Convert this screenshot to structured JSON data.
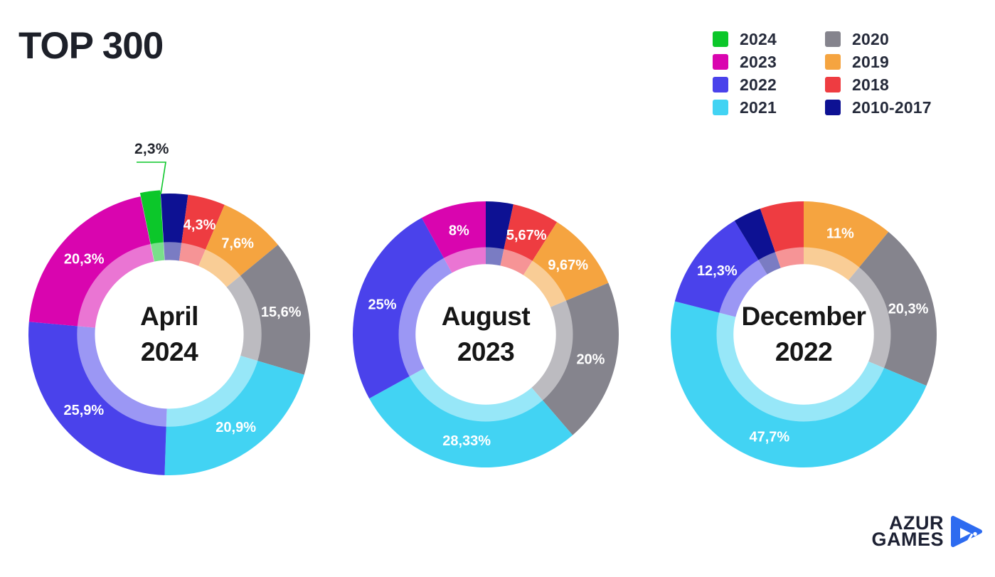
{
  "title": "TOP 300",
  "legend": {
    "columns": [
      [
        {
          "label": "2024",
          "color": "#0cc72a"
        },
        {
          "label": "2023",
          "color": "#d905af"
        },
        {
          "label": "2022",
          "color": "#4a42eb"
        },
        {
          "label": "2021",
          "color": "#42d3f3"
        }
      ],
      [
        {
          "label": "2020",
          "color": "#85848d"
        },
        {
          "label": "2019",
          "color": "#f5a440"
        },
        {
          "label": "2018",
          "color": "#ee3c41"
        },
        {
          "label": "2010-2017",
          "color": "#0d1193"
        }
      ]
    ]
  },
  "series_colors": {
    "2024": "#0cc72a",
    "2023": "#d905af",
    "2022": "#4a42eb",
    "2021": "#42d3f3",
    "2020": "#85848d",
    "2019": "#f5a440",
    "2018": "#ee3c41",
    "2010-2017": "#0d1193"
  },
  "chart_data": [
    {
      "type": "pie",
      "subtype": "donut",
      "center_lines": [
        "April",
        "2024"
      ],
      "unit": "%",
      "callout": {
        "text": "2,3%"
      },
      "slices": [
        {
          "name": "2010-2017",
          "value": 3.1,
          "label": null
        },
        {
          "name": "2018",
          "value": 4.3,
          "label": "4,3%"
        },
        {
          "name": "2019",
          "value": 7.6,
          "label": "7,6%"
        },
        {
          "name": "2020",
          "value": 15.6,
          "label": "15,6%"
        },
        {
          "name": "2021",
          "value": 20.9,
          "label": "20,9%"
        },
        {
          "name": "2022",
          "value": 25.9,
          "label": "25,9%"
        },
        {
          "name": "2023",
          "value": 20.3,
          "label": "20,3%"
        },
        {
          "name": "2024",
          "value": 2.3,
          "label": "2,3%",
          "label_style": "callout",
          "exploded": true
        }
      ]
    },
    {
      "type": "pie",
      "subtype": "donut",
      "center_lines": [
        "August",
        "2023"
      ],
      "unit": "%",
      "slices": [
        {
          "name": "2010-2017",
          "value": 3.33,
          "label": null
        },
        {
          "name": "2018",
          "value": 5.67,
          "label": "5,67%"
        },
        {
          "name": "2019",
          "value": 9.67,
          "label": "9,67%"
        },
        {
          "name": "2020",
          "value": 20,
          "label": "20%"
        },
        {
          "name": "2021",
          "value": 28.33,
          "label": "28,33%"
        },
        {
          "name": "2022",
          "value": 25,
          "label": "25%"
        },
        {
          "name": "2023",
          "value": 8,
          "label": "8%"
        }
      ]
    },
    {
      "type": "pie",
      "subtype": "donut",
      "center_lines": [
        "December",
        "2022"
      ],
      "unit": "%",
      "slices": [
        {
          "name": "2019",
          "value": 11,
          "label": "11%"
        },
        {
          "name": "2020",
          "value": 20.3,
          "label": "20,3%"
        },
        {
          "name": "2021",
          "value": 47.7,
          "label": "47,7%"
        },
        {
          "name": "2022",
          "value": 12.3,
          "label": "12,3%"
        },
        {
          "name": "2010-2017",
          "value": 3.4,
          "label": null
        },
        {
          "name": "2018",
          "value": 5.3,
          "label": null
        }
      ]
    }
  ],
  "logo": {
    "line1": "AZUR",
    "line2": "GAMES",
    "icon": "play-triangle-icon",
    "accent": "#2d6bf0"
  }
}
